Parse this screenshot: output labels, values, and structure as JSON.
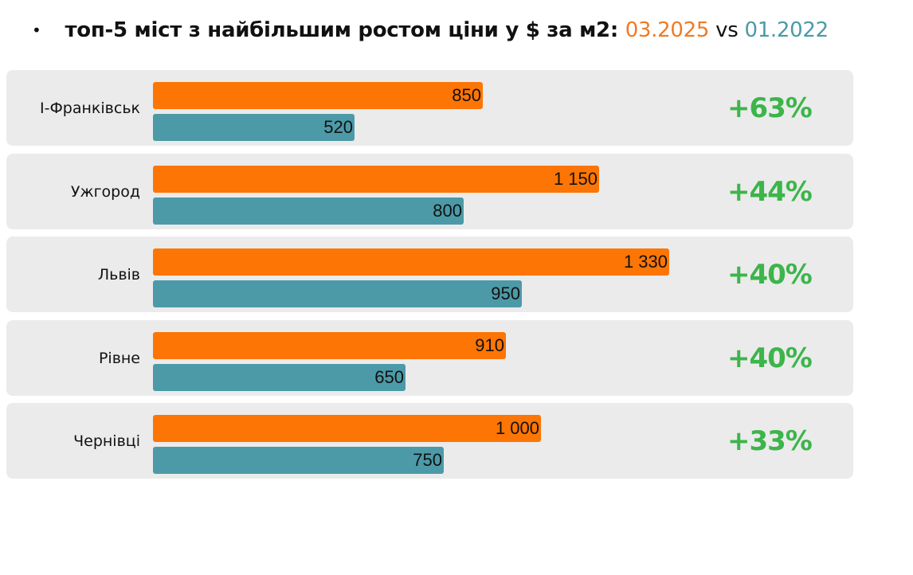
{
  "title": {
    "bullet": "•",
    "text": "топ-5 міст з найбільшим ростом ціни у $ за м2:",
    "period_new": "03.2025",
    "vs": "vs",
    "period_old": "01.2022"
  },
  "colors": {
    "new": "#fd7504",
    "old": "#4c9aa7",
    "growth": "#3cb54a",
    "panel": "#ebebeb"
  },
  "rows": [
    {
      "city": "І-Франківськ",
      "new_label": "850",
      "old_label": "520",
      "growth": "+63%"
    },
    {
      "city": "Ужгород",
      "new_label": "1 150",
      "old_label": "800",
      "growth": "+44%"
    },
    {
      "city": "Львів",
      "new_label": "1 330",
      "old_label": "950",
      "growth": "+40%"
    },
    {
      "city": "Рівне",
      "new_label": "910",
      "old_label": "650",
      "growth": "+40%"
    },
    {
      "city": "Чернівці",
      "new_label": "1 000",
      "old_label": "750",
      "growth": "+33%"
    }
  ],
  "chart_data": {
    "type": "bar",
    "orientation": "horizontal",
    "title": "топ-5 міст з найбільшим ростом ціни у $ за м2: 03.2025 vs 01.2022",
    "categories": [
      "І-Франківськ",
      "Ужгород",
      "Львів",
      "Рівне",
      "Чернівці"
    ],
    "series": [
      {
        "name": "03.2025",
        "color": "#fd7504",
        "values": [
          850,
          1150,
          1330,
          910,
          1000
        ]
      },
      {
        "name": "01.2022",
        "color": "#4c9aa7",
        "values": [
          520,
          800,
          950,
          650,
          750
        ]
      }
    ],
    "annotations": [
      "+63%",
      "+44%",
      "+40%",
      "+40%",
      "+33%"
    ],
    "xlabel": "",
    "ylabel": "",
    "grid": false,
    "legend": "in title"
  }
}
